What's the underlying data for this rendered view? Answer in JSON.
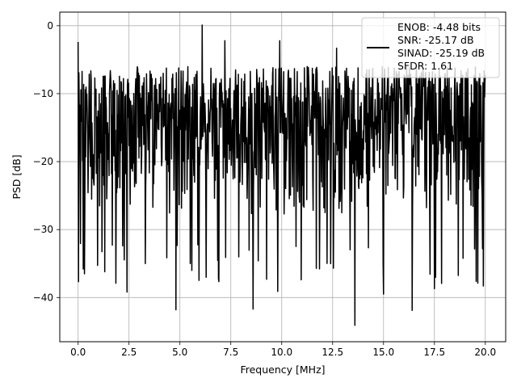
{
  "chart_data": {
    "type": "line",
    "title": "",
    "xlabel": "Frequency [MHz]",
    "ylabel": "PSD [dB]",
    "xlim": [
      -0.9,
      21.0
    ],
    "ylim": [
      -46.5,
      2.0
    ],
    "xticks": [
      0.0,
      2.5,
      5.0,
      7.5,
      10.0,
      12.5,
      15.0,
      17.5,
      20.0
    ],
    "xtick_labels": [
      "0.0",
      "2.5",
      "5.0",
      "7.5",
      "10.0",
      "12.5",
      "15.0",
      "17.5",
      "20.0"
    ],
    "yticks": [
      0,
      -10,
      -20,
      -30,
      -40
    ],
    "ytick_labels": [
      "0",
      "−10",
      "−20",
      "−30",
      "−40"
    ],
    "grid": true,
    "legend_position": "top-right",
    "series": [
      {
        "name": "ENOB: -4.48 bits\nSNR: -25.17 dB\nSINAD: -25.19 dB\nSFDR: 1.61",
        "legend_lines": [
          "ENOB: -4.48 bits",
          "SNR: -25.17 dB",
          "SINAD: -25.19 dB",
          "SFDR: 1.61"
        ],
        "color": "#000000",
        "x_start": 0.0,
        "x_end": 20.0,
        "num_points": 1025,
        "typical_range": [
          -28,
          -6
        ],
        "peaks": [
          {
            "x": 0.0,
            "y": -2.4
          },
          {
            "x": 6.1,
            "y": 0.1
          },
          {
            "x": 7.2,
            "y": -2.2
          },
          {
            "x": 9.9,
            "y": -2.2
          },
          {
            "x": 12.7,
            "y": -3.3
          }
        ],
        "troughs": [
          {
            "x": 0.25,
            "y": -35.8
          },
          {
            "x": 1.3,
            "y": -36.2
          },
          {
            "x": 2.4,
            "y": -39.2
          },
          {
            "x": 4.8,
            "y": -41.8
          },
          {
            "x": 6.9,
            "y": -37.2
          },
          {
            "x": 8.6,
            "y": -41.7
          },
          {
            "x": 9.8,
            "y": -39.1
          },
          {
            "x": 13.6,
            "y": -44.1
          },
          {
            "x": 15.0,
            "y": -39.5
          },
          {
            "x": 16.4,
            "y": -41.9
          },
          {
            "x": 17.5,
            "y": -38.7
          },
          {
            "x": 19.9,
            "y": -38.3
          }
        ]
      }
    ]
  }
}
